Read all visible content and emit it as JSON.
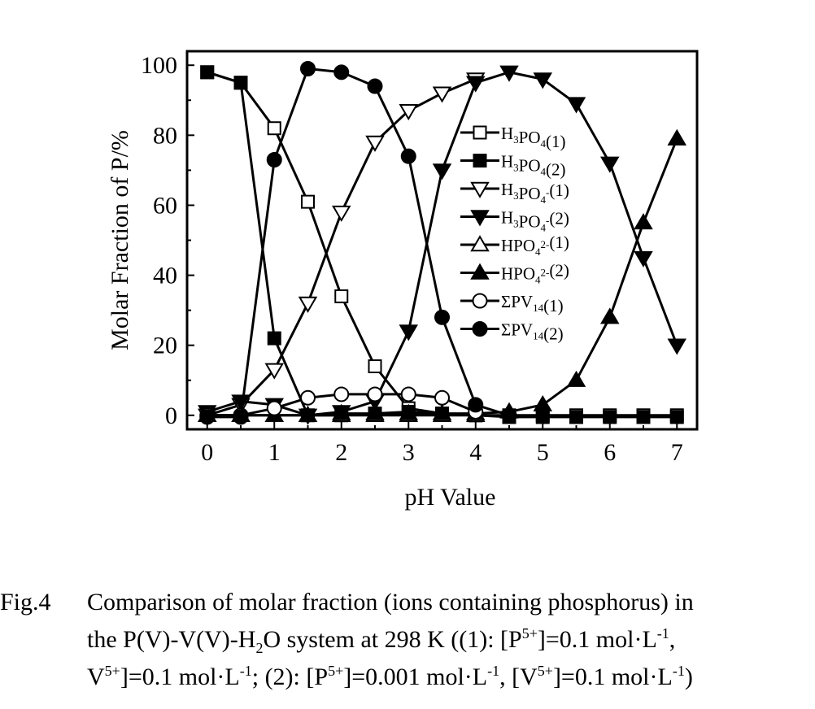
{
  "chart_data": {
    "type": "line",
    "xlabel": "pH Value",
    "ylabel": "Molar Fraction of P/%",
    "xlim": [
      -0.3,
      7.3
    ],
    "ylim": [
      -4,
      104
    ],
    "xticks": [
      "0",
      "1",
      "2",
      "3",
      "4",
      "5",
      "6",
      "7"
    ],
    "yticks": [
      "0",
      "20",
      "40",
      "60",
      "80",
      "100"
    ],
    "legend_position": "center-right",
    "series": [
      {
        "name_main": "H",
        "name_parts": [
          {
            "t": "H"
          },
          {
            "t": "3",
            "s": "sub"
          },
          {
            "t": "PO"
          },
          {
            "t": "4",
            "s": "sub"
          },
          {
            "t": "(1)"
          }
        ],
        "marker": "square-open",
        "x": [
          0,
          0.5,
          1,
          1.5,
          2,
          2.5,
          3,
          3.5,
          4,
          4.5,
          5,
          5.5,
          6,
          6.5,
          7
        ],
        "y": [
          98,
          95,
          82,
          61,
          34,
          14,
          2,
          0.5,
          0,
          0,
          0,
          0,
          0,
          0,
          0
        ]
      },
      {
        "name_parts": [
          {
            "t": "H"
          },
          {
            "t": "3",
            "s": "sub"
          },
          {
            "t": "PO"
          },
          {
            "t": "4",
            "s": "sub"
          },
          {
            "t": "(2)"
          }
        ],
        "marker": "square-filled",
        "x": [
          0,
          0.5,
          1,
          1.5,
          2,
          2.5,
          3,
          3.5,
          4,
          4.5,
          5,
          5.5,
          6,
          6.5,
          7
        ],
        "y": [
          98,
          95,
          22,
          0,
          0,
          0.5,
          1,
          0.5,
          0,
          -0.5,
          -0.5,
          -0.5,
          -0.5,
          -0.5,
          -0.5
        ]
      },
      {
        "name_parts": [
          {
            "t": "H"
          },
          {
            "t": "3",
            "s": "sub"
          },
          {
            "t": "PO"
          },
          {
            "t": "4",
            "s": "sub"
          },
          {
            "t": "-",
            "s": "sup"
          },
          {
            "t": "(1)"
          }
        ],
        "marker": "triangle-down-open",
        "x": [
          0,
          0.5,
          1,
          1.5,
          2,
          2.5,
          3,
          3.5,
          4
        ],
        "y": [
          0,
          3,
          13,
          32,
          58,
          78,
          87,
          92,
          96
        ]
      },
      {
        "name_parts": [
          {
            "t": "H"
          },
          {
            "t": "3",
            "s": "sub"
          },
          {
            "t": "PO"
          },
          {
            "t": "4",
            "s": "sub"
          },
          {
            "t": "-",
            "s": "sup"
          },
          {
            "t": "(2)"
          }
        ],
        "marker": "triangle-down-filled",
        "x": [
          0,
          0.5,
          1,
          1.5,
          2,
          2.5,
          3,
          3.5,
          4,
          4.5,
          5,
          5.5,
          6,
          6.5,
          7
        ],
        "y": [
          1,
          4,
          3,
          0,
          1,
          4,
          24,
          70,
          95,
          98,
          96,
          89,
          72,
          45,
          20
        ]
      },
      {
        "name_parts": [
          {
            "t": "HPO"
          },
          {
            "t": "4",
            "s": "sub"
          },
          {
            "t": "2-",
            "s": "sup"
          },
          {
            "t": "(1)"
          }
        ],
        "marker": "triangle-up-open",
        "x": [
          0,
          0.5,
          1,
          1.5,
          2,
          2.5,
          3,
          3.5,
          4
        ],
        "y": [
          0,
          0,
          0,
          0,
          0,
          0,
          0,
          0,
          0
        ]
      },
      {
        "name_parts": [
          {
            "t": "HPO"
          },
          {
            "t": "4",
            "s": "sub"
          },
          {
            "t": "2-",
            "s": "sup"
          },
          {
            "t": "(2)"
          }
        ],
        "marker": "triangle-up-filled",
        "x": [
          0,
          0.5,
          1,
          1.5,
          2,
          2.5,
          3,
          3.5,
          4,
          4.5,
          5,
          5.5,
          6,
          6.5,
          7
        ],
        "y": [
          0,
          0,
          0,
          0,
          0.5,
          0.5,
          0.5,
          0.5,
          0.5,
          1,
          3,
          10,
          28,
          55,
          79
        ]
      },
      {
        "name_parts": [
          {
            "t": "ΣPV"
          },
          {
            "t": "14",
            "s": "sub"
          },
          {
            "t": "(1)"
          }
        ],
        "marker": "circle-open",
        "x": [
          0,
          0.5,
          1,
          1.5,
          2,
          2.5,
          3,
          3.5,
          4
        ],
        "y": [
          0,
          0,
          2,
          5,
          6,
          6,
          6,
          5,
          1
        ]
      },
      {
        "name_parts": [
          {
            "t": "ΣPV"
          },
          {
            "t": "14",
            "s": "sub"
          },
          {
            "t": "(2)"
          }
        ],
        "marker": "circle-filled",
        "x": [
          0,
          0.5,
          1,
          1.5,
          2,
          2.5,
          3,
          3.5,
          4,
          4.5
        ],
        "y": [
          -0.5,
          -0.5,
          73,
          99,
          98,
          94,
          74,
          28,
          3,
          0
        ]
      }
    ]
  },
  "caption": {
    "label": "Fig.4",
    "line1": "Comparison of molar fraction (ions containing phosphorus) in",
    "line2": {
      "a": "the P(V)-V(V)-H",
      "a_sub": "2",
      "b": "O system at 298 K ((1): [P",
      "b_sup": "5+",
      "c": "]=0.1 mol·L",
      "c_sup": "-1",
      "d": ","
    },
    "line3": {
      "a": "V",
      "a_sup": "5+",
      "b": "]=0.1 mol·L",
      "b_sup": "-1",
      "c": "; (2): [P",
      "c_sup": "5+",
      "d": "]=0.001 mol·L",
      "d_sup": "-1",
      "e": ", [V",
      "e_sup": "5+",
      "f": "]=0.1 mol·L",
      "f_sup": "-1",
      "g": ")"
    }
  }
}
